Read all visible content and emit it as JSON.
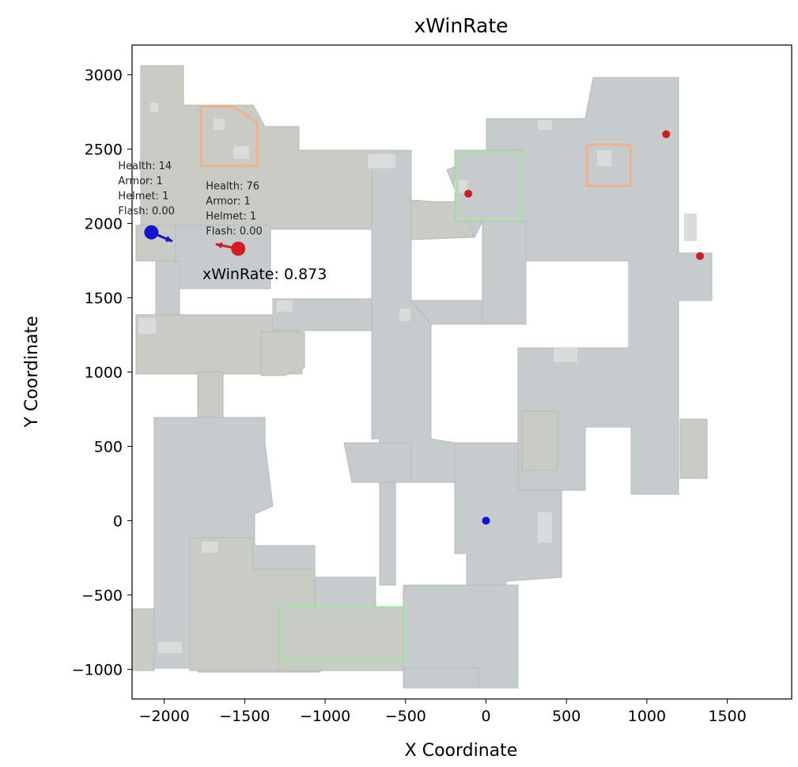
{
  "chart_data": {
    "type": "scatter",
    "title": "xWinRate",
    "xlabel": "X Coordinate",
    "ylabel": "Y Coordinate",
    "xlim": [
      -2200,
      1900
    ],
    "ylim": [
      -1200,
      3200
    ],
    "xticks": [
      -2000,
      -1500,
      -1000,
      -500,
      0,
      500,
      1000,
      1500
    ],
    "yticks": [
      -1000,
      -500,
      0,
      500,
      1000,
      1500,
      2000,
      2500,
      3000
    ],
    "xtick_labels": [
      "−2000",
      "−1500",
      "−1000",
      "−500",
      "0",
      "500",
      "1000",
      "1500"
    ],
    "ytick_labels": [
      "−1000",
      "−500",
      "0",
      "500",
      "1000",
      "1500",
      "2000",
      "2500",
      "3000"
    ],
    "grid": false,
    "background": "map overview image",
    "win_rate_text": "xWinRate: 0.873",
    "highlighted_players": [
      {
        "team": "blue",
        "x": -2080,
        "y": 1940,
        "arrow_to": [
          -1950,
          1880
        ],
        "label_lines": [
          "Health: 14",
          "Armor: 1",
          "Helmet: 1",
          "Flash: 0.00"
        ]
      },
      {
        "team": "red",
        "x": -1540,
        "y": 1830,
        "arrow_to": [
          -1680,
          1860
        ],
        "label_lines": [
          "Health: 76",
          "Armor: 1",
          "Helmet: 1",
          "Flash: 0.00"
        ]
      }
    ],
    "other_players": [
      {
        "team": "red",
        "x": -110,
        "y": 2200
      },
      {
        "team": "red",
        "x": 1120,
        "y": 2600
      },
      {
        "team": "red",
        "x": 1330,
        "y": 1780
      },
      {
        "team": "blue",
        "x": 0,
        "y": 0
      }
    ],
    "colors": {
      "blue": "#1414d2",
      "red": "#d21e1e"
    }
  }
}
